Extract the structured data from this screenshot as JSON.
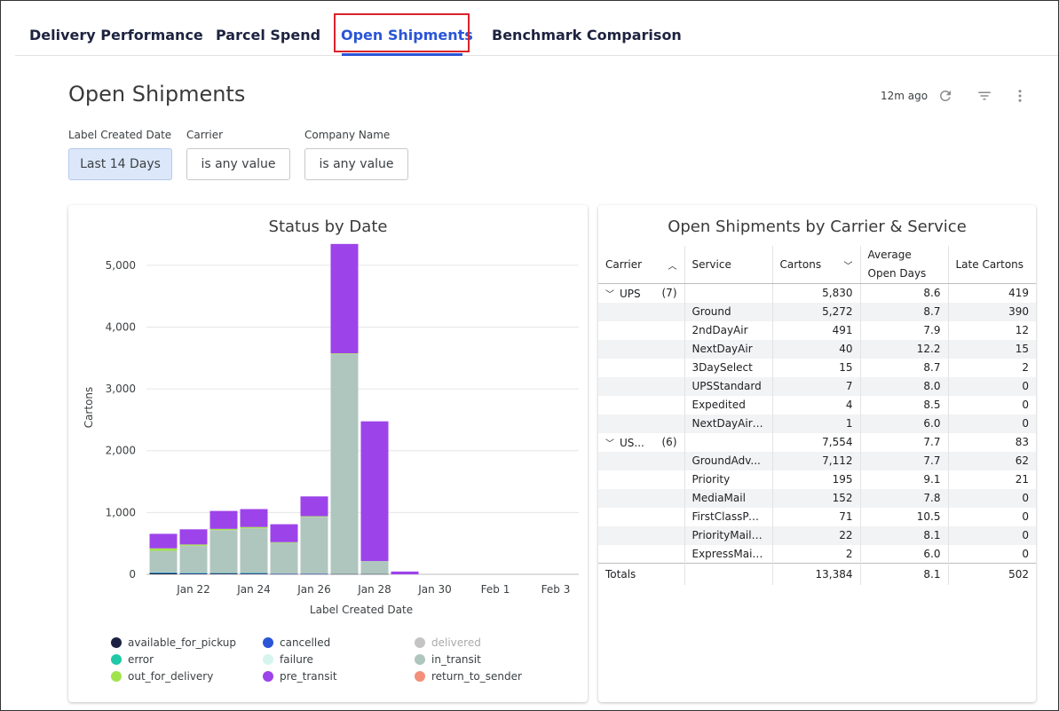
{
  "tabs": [
    {
      "label": "Delivery Performance"
    },
    {
      "label": "Parcel Spend"
    },
    {
      "label": "Open Shipments"
    },
    {
      "label": "Benchmark Comparison"
    }
  ],
  "header": {
    "title": "Open Shipments",
    "updated": "12m ago",
    "icons": [
      "refresh-icon",
      "filter-icon",
      "more-vert-icon"
    ]
  },
  "filters": [
    {
      "label": "Label Created Date",
      "value": "Last 14 Days"
    },
    {
      "label": "Carrier",
      "value": "is any value"
    },
    {
      "label": "Company Name",
      "value": "is any value"
    }
  ],
  "chart_card": {
    "title": "Status by Date"
  },
  "chart_data": {
    "type": "bar",
    "stacked": true,
    "title": "Status by Date",
    "xlabel": "Label Created Date",
    "ylabel": "Cartons",
    "ylim": [
      0,
      5400
    ],
    "yticks": [
      0,
      1000,
      2000,
      3000,
      4000,
      5000
    ],
    "ytick_labels": [
      "0",
      "1,000",
      "2,000",
      "3,000",
      "4,000",
      "5,000"
    ],
    "xtick_labels": [
      "Jan 22",
      "Jan 24",
      "Jan 26",
      "Jan 28",
      "Jan 30",
      "Feb 1",
      "Feb 3"
    ],
    "categories": [
      "Jan 21",
      "Jan 22",
      "Jan 23",
      "Jan 24",
      "Jan 25",
      "Jan 26",
      "Jan 27",
      "Jan 28",
      "Jan 29"
    ],
    "series": [
      {
        "name": "available_for_pickup",
        "color": "#1b2142",
        "values": [
          15,
          8,
          12,
          10,
          5,
          5,
          5,
          5,
          0
        ]
      },
      {
        "name": "cancelled",
        "color": "#2a55d6",
        "values": [
          10,
          10,
          8,
          10,
          5,
          5,
          0,
          0,
          0
        ]
      },
      {
        "name": "error",
        "color": "#1fc9a6",
        "values": [
          5,
          5,
          5,
          5,
          0,
          0,
          0,
          0,
          0
        ]
      },
      {
        "name": "in_transit",
        "color": "#afc6bf",
        "values": [
          350,
          440,
          690,
          720,
          500,
          920,
          3560,
          210,
          0
        ]
      },
      {
        "name": "out_for_delivery",
        "color": "#a2e34c",
        "values": [
          40,
          20,
          20,
          20,
          10,
          10,
          10,
          0,
          0
        ]
      },
      {
        "name": "pre_transit",
        "color": "#9d43ea",
        "values": [
          235,
          245,
          290,
          290,
          290,
          320,
          1770,
          2260,
          45
        ]
      }
    ],
    "legend": [
      {
        "name": "available_for_pickup",
        "color": "#1b2142"
      },
      {
        "name": "cancelled",
        "color": "#2a55d6"
      },
      {
        "name": "delivered",
        "color": "#c4c4c4"
      },
      {
        "name": "error",
        "color": "#1fc9a6"
      },
      {
        "name": "failure",
        "color": "#d6f5ec"
      },
      {
        "name": "in_transit",
        "color": "#afc6bf"
      },
      {
        "name": "out_for_delivery",
        "color": "#a2e34c"
      },
      {
        "name": "pre_transit",
        "color": "#9d43ea"
      },
      {
        "name": "return_to_sender",
        "color": "#f2907a"
      }
    ],
    "legend_placement": "bottom",
    "grid": true
  },
  "table_card": {
    "title": "Open Shipments by Carrier & Service",
    "columns": [
      "Carrier",
      "Service",
      "Cartons",
      "Average Open Days",
      "Late Cartons"
    ],
    "groups": [
      {
        "carrier": "UPS",
        "count": "(7)",
        "cartons": "5,830",
        "avg_days": "8.6",
        "late": "419",
        "rows": [
          {
            "service": "Ground",
            "cartons": "5,272",
            "avg_days": "8.7",
            "late": "390"
          },
          {
            "service": "2ndDayAir",
            "cartons": "491",
            "avg_days": "7.9",
            "late": "12"
          },
          {
            "service": "NextDayAir",
            "cartons": "40",
            "avg_days": "12.2",
            "late": "15"
          },
          {
            "service": "3DaySelect",
            "cartons": "15",
            "avg_days": "8.7",
            "late": "2"
          },
          {
            "service": "UPSStandard",
            "cartons": "7",
            "avg_days": "8.0",
            "late": "0"
          },
          {
            "service": "Expedited",
            "cartons": "4",
            "avg_days": "8.5",
            "late": "0"
          },
          {
            "service": "NextDayAirS...",
            "cartons": "1",
            "avg_days": "6.0",
            "late": "0"
          }
        ]
      },
      {
        "carrier": "US...",
        "count": "(6)",
        "cartons": "7,554",
        "avg_days": "7.7",
        "late": "83",
        "rows": [
          {
            "service": "GroundAdv...",
            "cartons": "7,112",
            "avg_days": "7.7",
            "late": "62"
          },
          {
            "service": "Priority",
            "cartons": "195",
            "avg_days": "9.1",
            "late": "21"
          },
          {
            "service": "MediaMail",
            "cartons": "152",
            "avg_days": "7.8",
            "late": "0"
          },
          {
            "service": "FirstClassPa...",
            "cartons": "71",
            "avg_days": "10.5",
            "late": "0"
          },
          {
            "service": "PriorityMailI...",
            "cartons": "22",
            "avg_days": "8.1",
            "late": "0"
          },
          {
            "service": "ExpressMailI...",
            "cartons": "2",
            "avg_days": "6.0",
            "late": "0"
          }
        ]
      }
    ],
    "totals": {
      "label": "Totals",
      "cartons": "13,384",
      "avg_days": "8.1",
      "late": "502"
    }
  }
}
